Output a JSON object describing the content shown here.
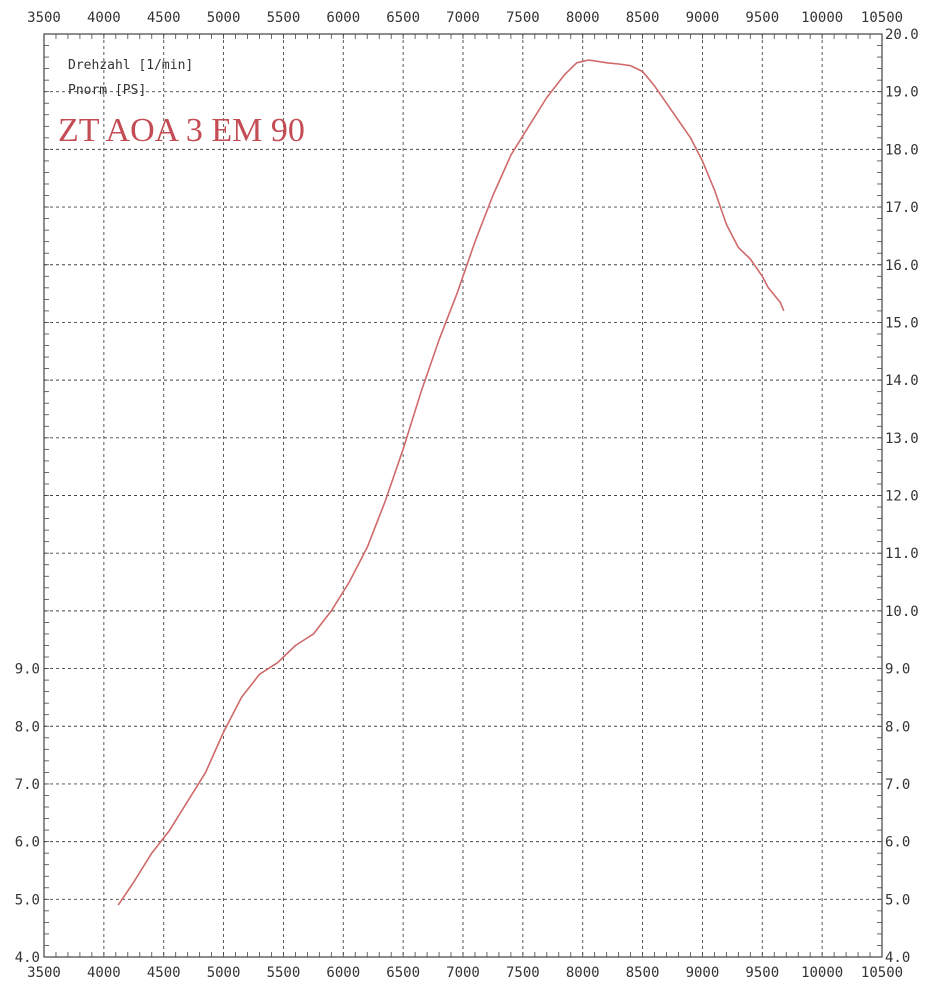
{
  "colors": {
    "curve": "#d06a6a",
    "title": "#c44d55",
    "grid": "#444444",
    "text": "#333333"
  },
  "chart_data": {
    "type": "line",
    "title": "ZT AOA 3 EM 90",
    "legend": [
      "Drehzahl [1/min]",
      "Pnorm [PS]"
    ],
    "legend_position": "top-left",
    "grid": true,
    "xlim": [
      3500,
      10500
    ],
    "x_ticks": [
      "3500",
      "4000",
      "4500",
      "5000",
      "5500",
      "6000",
      "6500",
      "7000",
      "7500",
      "8000",
      "8500",
      "9000",
      "9500",
      "10000",
      "10500"
    ],
    "ylim": [
      4.0,
      20.0
    ],
    "y_left_ticks": [
      "4.0",
      "5.0",
      "6.0",
      "7.0",
      "8.0",
      "9.0"
    ],
    "y_right_ticks": [
      "4.0",
      "5.0",
      "6.0",
      "7.0",
      "8.0",
      "9.0",
      "10.0",
      "11.0",
      "12.0",
      "13.0",
      "14.0",
      "15.0",
      "16.0",
      "17.0",
      "18.0",
      "19.0",
      "20.0"
    ],
    "series": [
      {
        "x": [
          4120,
          4250,
          4400,
          4550,
          4700,
          4850,
          5000,
          5150,
          5300,
          5450,
          5600,
          5750,
          5900,
          6050,
          6200,
          6350,
          6500,
          6650,
          6800,
          6950,
          7100,
          7250,
          7400,
          7550,
          7700,
          7850,
          7950,
          8050,
          8200,
          8300,
          8400,
          8500,
          8600,
          8700,
          8800,
          8900,
          9000,
          9100,
          9200,
          9300,
          9400,
          9500,
          9550,
          9650,
          9680
        ],
        "y": [
          4.9,
          5.3,
          5.8,
          6.2,
          6.7,
          7.2,
          7.9,
          8.5,
          8.9,
          9.1,
          9.4,
          9.6,
          10.0,
          10.5,
          11.1,
          11.9,
          12.8,
          13.8,
          14.7,
          15.5,
          16.4,
          17.2,
          17.9,
          18.4,
          18.9,
          19.3,
          19.5,
          19.55,
          19.5,
          19.48,
          19.45,
          19.35,
          19.1,
          18.8,
          18.5,
          18.2,
          17.8,
          17.3,
          16.7,
          16.3,
          16.1,
          15.8,
          15.6,
          15.35,
          15.2
        ]
      }
    ]
  }
}
